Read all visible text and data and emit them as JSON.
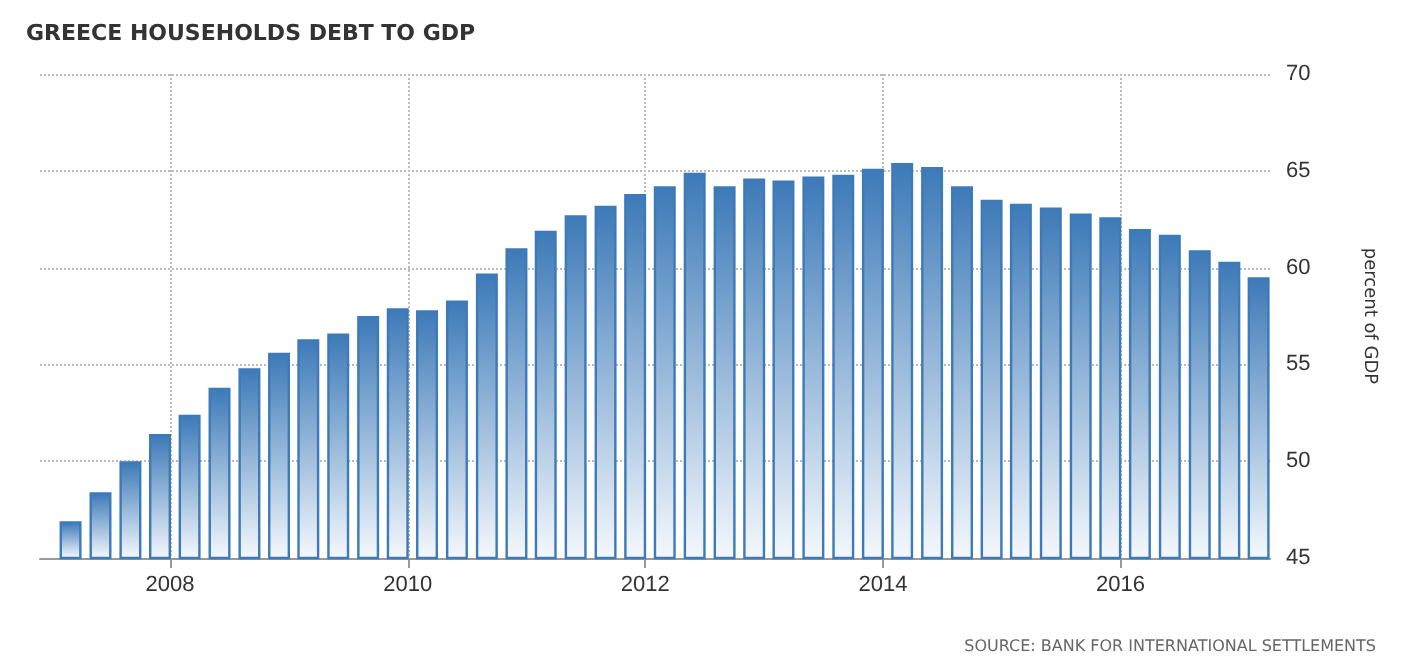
{
  "chart_data": {
    "type": "bar",
    "title": "GREECE HOUSEHOLDS DEBT TO GDP",
    "ylabel": "percent of GDP",
    "annotations": [
      "SOURCE: BANK FOR INTERNATIONAL SETTLEMENTS"
    ],
    "x": [
      "2007-03",
      "2007-06",
      "2007-09",
      "2007-12",
      "2008-03",
      "2008-06",
      "2008-09",
      "2008-12",
      "2009-03",
      "2009-06",
      "2009-09",
      "2009-12",
      "2010-03",
      "2010-06",
      "2010-09",
      "2010-12",
      "2011-03",
      "2011-06",
      "2011-09",
      "2011-12",
      "2012-03",
      "2012-06",
      "2012-09",
      "2012-12",
      "2013-03",
      "2013-06",
      "2013-09",
      "2013-12",
      "2014-03",
      "2014-06",
      "2014-09",
      "2014-12",
      "2015-03",
      "2015-06",
      "2015-09",
      "2015-12",
      "2016-03",
      "2016-06",
      "2016-09",
      "2016-12",
      "2017-03"
    ],
    "values": [
      46.9,
      48.4,
      50.0,
      51.4,
      52.4,
      53.8,
      54.8,
      55.6,
      56.3,
      56.6,
      57.5,
      57.9,
      57.8,
      58.3,
      59.7,
      61.0,
      61.9,
      62.7,
      63.2,
      63.8,
      64.2,
      64.9,
      64.2,
      64.6,
      64.5,
      64.7,
      64.8,
      65.1,
      65.4,
      65.2,
      64.2,
      63.5,
      63.3,
      63.1,
      62.8,
      62.6,
      62.0,
      61.7,
      60.9,
      60.3,
      59.5
    ],
    "color": "#3d7ab8",
    "xlim": [
      "2006-11-27",
      "2017-04-05"
    ],
    "xticks": [
      "2008",
      "2010",
      "2012",
      "2014",
      "2016"
    ],
    "ylim": [
      45,
      70
    ],
    "yticks": [
      45,
      50,
      55,
      60,
      65,
      70
    ],
    "grid": true
  }
}
